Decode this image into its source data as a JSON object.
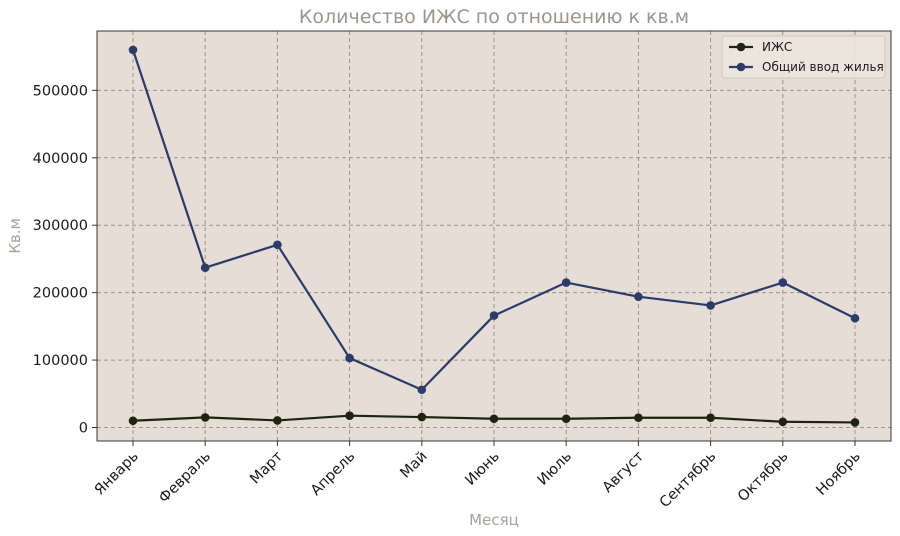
{
  "chart_data": {
    "type": "line",
    "title": "Количество ИЖС по отношению к кв.м",
    "xlabel": "Месяц",
    "ylabel": "Кв.м",
    "categories": [
      "Январь",
      "Февраль",
      "Март",
      "Апрель",
      "Май",
      "Июнь",
      "Июль",
      "Август",
      "Сентябрь",
      "Октябрь",
      "Ноябрь"
    ],
    "series": [
      {
        "name": "ИЖС",
        "color": "#1f2410",
        "values": [
          10000,
          15000,
          10500,
          17500,
          15500,
          13000,
          13000,
          14500,
          14500,
          8500,
          7500
        ]
      },
      {
        "name": "Общий ввод жилья",
        "color": "#2c3b68",
        "values": [
          560000,
          237000,
          271000,
          103000,
          56000,
          166000,
          215000,
          194000,
          181000,
          215000,
          162000
        ]
      }
    ],
    "ylim": [
      -20000,
      588000
    ],
    "yticks": [
      0,
      100000,
      200000,
      300000,
      400000,
      500000
    ],
    "ytick_labels": [
      "0",
      "100000",
      "200000",
      "300000",
      "400000",
      "500000"
    ],
    "grid": true,
    "legend": "top-right",
    "plot_background": "#e5ddd6"
  }
}
